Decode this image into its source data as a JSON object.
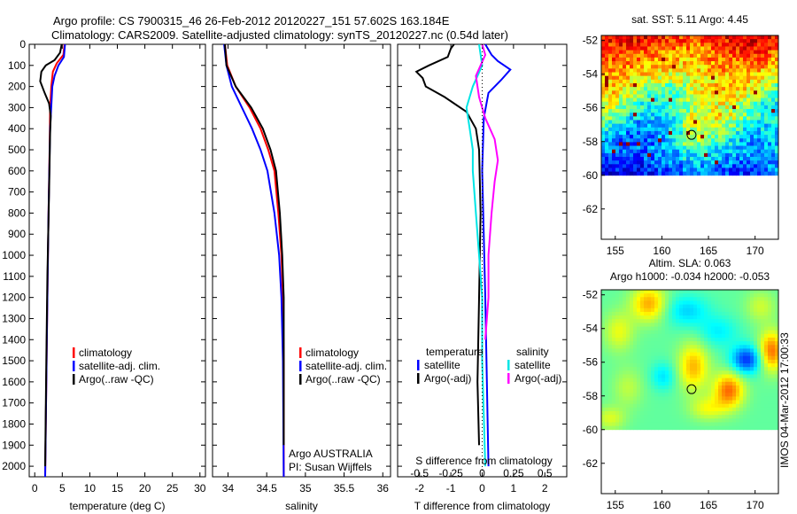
{
  "title": {
    "line1": "Argo profile: CS 7900315_46 26-Feb-2012 20120227_151 57.602S 163.184E",
    "line2": "Climatology: CARS2009. Satellite-adjusted climatology: synTS_20120227.nc (0.54d later)"
  },
  "colors": {
    "climatology": "#ff0000",
    "satellite": "#0000ff",
    "argo": "#000000",
    "sal_satellite": "#00e5e5",
    "sal_argo": "#ff00ff",
    "land_mask": "#ffffff"
  },
  "chart_data": [
    {
      "type": "line",
      "id": "temperature-profile",
      "xlabel": "temperature (deg C)",
      "ylabel": "",
      "xlim": [
        -1,
        31
      ],
      "ylim": [
        2050,
        0
      ],
      "xticks": [
        "0",
        "5",
        "10",
        "15",
        "20",
        "25",
        "30"
      ],
      "yticks": [
        "0",
        "100",
        "200",
        "300",
        "400",
        "500",
        "600",
        "700",
        "800",
        "900",
        "1000",
        "1100",
        "1200",
        "1300",
        "1400",
        "1500",
        "1600",
        "1700",
        "1800",
        "1900",
        "2000"
      ],
      "legend": [
        "climatology",
        "satellite-adj. clim.",
        "Argo(..raw -QC)"
      ],
      "series": [
        {
          "name": "climatology",
          "color": "#ff0000",
          "points": [
            [
              5.4,
              0
            ],
            [
              5.2,
              50
            ],
            [
              4.0,
              90
            ],
            [
              3.3,
              130
            ],
            [
              3.0,
              200
            ],
            [
              2.8,
              300
            ],
            [
              2.7,
              500
            ],
            [
              2.5,
              800
            ],
            [
              2.3,
              1200
            ],
            [
              2.1,
              1600
            ],
            [
              1.9,
              2050
            ]
          ]
        },
        {
          "name": "satellite-adj. clim.",
          "color": "#0000ff",
          "points": [
            [
              5.5,
              0
            ],
            [
              5.3,
              60
            ],
            [
              4.3,
              100
            ],
            [
              3.6,
              150
            ],
            [
              3.2,
              200
            ],
            [
              2.8,
              400
            ],
            [
              2.5,
              800
            ],
            [
              2.3,
              1200
            ],
            [
              2.1,
              1600
            ],
            [
              1.9,
              2050
            ]
          ]
        },
        {
          "name": "Argo(..raw -QC)",
          "color": "#000000",
          "points": [
            [
              4.9,
              0
            ],
            [
              4.6,
              40
            ],
            [
              3.6,
              75
            ],
            [
              2.0,
              100
            ],
            [
              1.2,
              130
            ],
            [
              1.0,
              175
            ],
            [
              1.8,
              230
            ],
            [
              2.6,
              280
            ],
            [
              2.9,
              340
            ],
            [
              2.8,
              420
            ],
            [
              2.6,
              700
            ],
            [
              2.3,
              1100
            ],
            [
              2.1,
              1500
            ],
            [
              1.9,
              2000
            ]
          ]
        }
      ]
    },
    {
      "type": "line",
      "id": "salinity-profile",
      "xlabel": "salinity",
      "ylabel": "",
      "xlim": [
        33.8,
        36.1
      ],
      "ylim": [
        2050,
        0
      ],
      "xticks": [
        "34",
        "34.5",
        "35",
        "35.5",
        "36"
      ],
      "legend": [
        "climatology",
        "satellite-adj. clim.",
        "Argo(..raw -QC)"
      ],
      "annotation": [
        "Argo AUSTRALIA",
        "PI: Susan Wijffels"
      ],
      "series": [
        {
          "name": "climatology",
          "color": "#ff0000",
          "points": [
            [
              33.96,
              0
            ],
            [
              33.99,
              100
            ],
            [
              34.1,
              200
            ],
            [
              34.28,
              300
            ],
            [
              34.42,
              400
            ],
            [
              34.52,
              500
            ],
            [
              34.6,
              600
            ],
            [
              34.65,
              800
            ],
            [
              34.69,
              1000
            ],
            [
              34.71,
              1200
            ],
            [
              34.72,
              1500
            ],
            [
              34.72,
              2050
            ]
          ]
        },
        {
          "name": "satellite-adj. clim.",
          "color": "#0000ff",
          "points": [
            [
              33.95,
              0
            ],
            [
              33.98,
              100
            ],
            [
              34.05,
              200
            ],
            [
              34.18,
              300
            ],
            [
              34.31,
              400
            ],
            [
              34.42,
              500
            ],
            [
              34.51,
              600
            ],
            [
              34.6,
              800
            ],
            [
              34.66,
              1000
            ],
            [
              34.69,
              1200
            ],
            [
              34.71,
              1500
            ],
            [
              34.72,
              2050
            ]
          ]
        },
        {
          "name": "Argo(..raw -QC)",
          "color": "#000000",
          "points": [
            [
              33.96,
              0
            ],
            [
              33.98,
              100
            ],
            [
              34.1,
              200
            ],
            [
              34.3,
              300
            ],
            [
              34.45,
              400
            ],
            [
              34.55,
              500
            ],
            [
              34.62,
              600
            ],
            [
              34.67,
              800
            ],
            [
              34.7,
              1000
            ],
            [
              34.72,
              1200
            ],
            [
              34.72,
              1500
            ],
            [
              34.72,
              1900
            ]
          ]
        }
      ]
    },
    {
      "type": "line",
      "id": "difference-profile",
      "xlabel": "T difference from climatology",
      "xlabel2": "S difference from climatology",
      "xlim": [
        -2.7,
        2.7
      ],
      "ylim": [
        2050,
        0
      ],
      "xticks": [
        "-2",
        "-1",
        "0",
        "1",
        "2"
      ],
      "xticks_s": [
        "-0.5",
        "-0.25",
        "0",
        "0.25",
        "0.5"
      ],
      "legend_t_title": "temperature",
      "legend_s_title": "salinity",
      "legend": [
        "satellite",
        "Argo(-adj)",
        "satellite",
        "Argo(-adj)"
      ],
      "series": [
        {
          "name": "satellite",
          "group": "temperature",
          "color": "#0000ff",
          "points": [
            [
              0.1,
              0
            ],
            [
              0.3,
              50
            ],
            [
              0.5,
              80
            ],
            [
              0.9,
              120
            ],
            [
              0.6,
              170
            ],
            [
              0.2,
              230
            ],
            [
              0.05,
              350
            ],
            [
              0.0,
              600
            ],
            [
              0.1,
              1200
            ],
            [
              0.2,
              2000
            ]
          ]
        },
        {
          "name": "Argo(-adj)",
          "group": "temperature",
          "color": "#000000",
          "points": [
            [
              -0.9,
              0
            ],
            [
              -1.0,
              20
            ],
            [
              -1.1,
              60
            ],
            [
              -1.7,
              100
            ],
            [
              -2.1,
              130
            ],
            [
              -1.9,
              160
            ],
            [
              -1.8,
              200
            ],
            [
              -1.2,
              250
            ],
            [
              -0.5,
              320
            ],
            [
              -0.2,
              400
            ],
            [
              -0.1,
              500
            ],
            [
              -0.05,
              800
            ],
            [
              -0.1,
              1200
            ],
            [
              -0.15,
              1600
            ],
            [
              -0.1,
              1900
            ]
          ]
        },
        {
          "name": "satellite",
          "group": "salinity",
          "color": "#00e5e5",
          "points": [
            [
              -0.1,
              0
            ],
            [
              0.0,
              100
            ],
            [
              -0.3,
              200
            ],
            [
              -0.5,
              300
            ],
            [
              -0.4,
              400
            ],
            [
              -0.3,
              500
            ],
            [
              -0.3,
              600
            ],
            [
              -0.2,
              800
            ],
            [
              -0.1,
              1000
            ],
            [
              0.0,
              1200
            ],
            [
              0.0,
              1500
            ],
            [
              0.1,
              2000
            ]
          ]
        },
        {
          "name": "Argo(-adj)",
          "group": "salinity",
          "color": "#ff00ff",
          "points": [
            [
              0.0,
              0
            ],
            [
              0.1,
              50
            ],
            [
              -0.2,
              150
            ],
            [
              -0.1,
              250
            ],
            [
              0.1,
              350
            ],
            [
              0.4,
              450
            ],
            [
              0.5,
              550
            ],
            [
              0.4,
              650
            ],
            [
              0.3,
              800
            ],
            [
              0.2,
              1000
            ],
            [
              0.2,
              1200
            ],
            [
              0.1,
              1400
            ]
          ]
        }
      ]
    },
    {
      "type": "heatmap",
      "id": "sst-map",
      "title": "sat. SST: 5.11  Argo: 4.45",
      "xlim": [
        153.5,
        172.5
      ],
      "ylim": [
        -63.8,
        -51.7
      ],
      "xticks": [
        "155",
        "160",
        "165",
        "170"
      ],
      "yticks": [
        "-52",
        "-54",
        "-56",
        "-58",
        "-60",
        "-62"
      ],
      "data_extent_lat": [
        -60,
        -51.7
      ],
      "argo_position": [
        163.184,
        -57.602
      ]
    },
    {
      "type": "heatmap",
      "id": "sla-map",
      "title": "Altim. SLA: 0.063",
      "subtitle": "Argo h1000: -0.034 h2000: -0.053",
      "xlim": [
        153.5,
        172.5
      ],
      "ylim": [
        -63.8,
        -51.7
      ],
      "xticks": [
        "155",
        "160",
        "165",
        "170"
      ],
      "yticks": [
        "-52",
        "-54",
        "-56",
        "-58",
        "-60",
        "-62"
      ],
      "data_extent_lat": [
        -60,
        -51.7
      ],
      "argo_position": [
        163.184,
        -57.602
      ]
    }
  ],
  "credit": "IMOS 04-Mar-2012 17:00:33"
}
